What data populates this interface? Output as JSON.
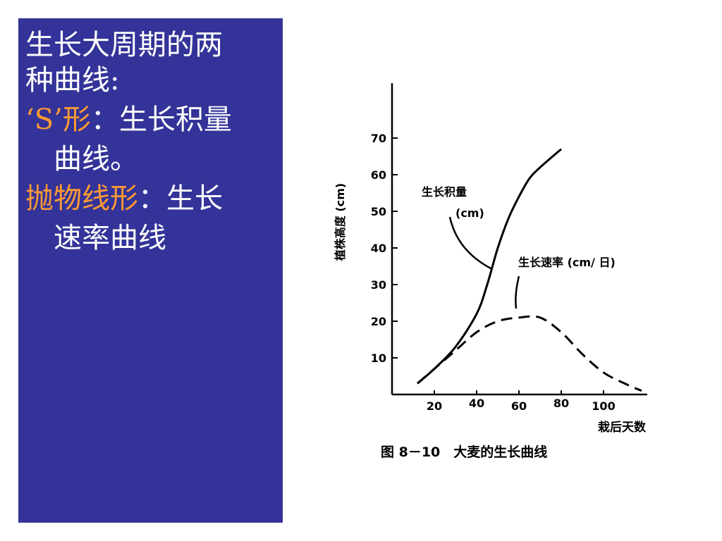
{
  "slide": {
    "title_line1": "生长大周期的两",
    "title_line2": "种曲线:",
    "s_term": "‘S’形",
    "s_sep": "：",
    "s_desc1": "生长积量",
    "s_desc2": "曲线。",
    "p_term": "抛物线形",
    "p_sep": "：",
    "p_desc1": "生长",
    "p_desc2": "速率曲线",
    "colors": {
      "panel": "#333399",
      "text": "#ffffff",
      "highlight": "#ff9933"
    }
  },
  "figure": {
    "caption": "图 8－10　大麦的生长曲线"
  },
  "chart_data": {
    "type": "line",
    "title": "",
    "xlabel": "栽后天数",
    "ylabel": "植株高度 (cm)",
    "xticks": [
      20,
      40,
      60,
      80,
      100
    ],
    "yticks": [
      10,
      20,
      30,
      40,
      50,
      60,
      70
    ],
    "xlim": [
      0,
      120
    ],
    "ylim": [
      0,
      85
    ],
    "series": [
      {
        "name": "生长积量 (cm)",
        "style": "solid",
        "x": [
          12,
          20,
          30,
          40,
          45,
          50,
          55,
          60,
          65,
          70,
          80
        ],
        "y": [
          3,
          7,
          13,
          22,
          30,
          40,
          48,
          54,
          59,
          62,
          67
        ]
      },
      {
        "name": "生长速率 (cm/日)",
        "style": "dashed",
        "x": [
          12,
          20,
          30,
          40,
          50,
          60,
          70,
          80,
          90,
          100,
          110,
          118
        ],
        "y": [
          3,
          7,
          12,
          17,
          20,
          21,
          21,
          17,
          11,
          6,
          3,
          1
        ]
      }
    ],
    "annotations": [
      {
        "label": "生长积量"
      },
      {
        "label": "(cm)"
      },
      {
        "label": "生长速率 (cm/ 日)"
      }
    ]
  }
}
